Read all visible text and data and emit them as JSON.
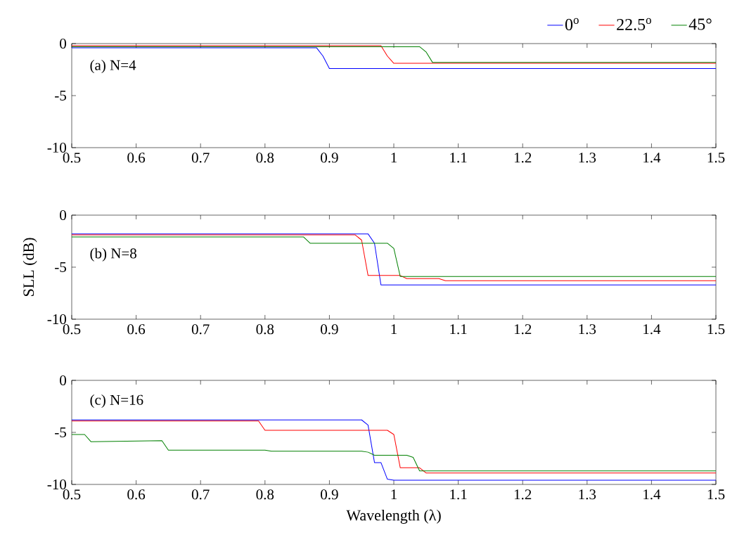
{
  "chart_data": [
    {
      "type": "line",
      "xlim": [
        0.5,
        1.5
      ],
      "ylim": [
        -10,
        0
      ],
      "xticks": [
        0.5,
        0.6,
        0.7,
        0.8,
        0.9,
        1,
        1.1,
        1.2,
        1.3,
        1.4,
        1.5
      ],
      "yticks": [
        -10,
        -5,
        0
      ],
      "legend": "top right",
      "marker": "none",
      "line_style": "solid",
      "annotations": [
        "(a) N=4"
      ],
      "series": [
        {
          "name": "0$^{o}$",
          "color": "#0000ff",
          "x": [
            0.5,
            0.88,
            0.89,
            0.9,
            1.5
          ],
          "values": [
            -0.4,
            -0.4,
            -1.2,
            -2.4,
            -2.4
          ]
        },
        {
          "name": "22.5$^{o}$",
          "color": "#ff0000",
          "x": [
            0.5,
            0.98,
            0.99,
            1.0,
            1.5
          ],
          "values": [
            -0.2,
            -0.2,
            -1.2,
            -1.9,
            -1.9
          ]
        },
        {
          "name": "45°",
          "color": "#008000",
          "x": [
            0.5,
            1.04,
            1.05,
            1.06,
            1.5
          ],
          "values": [
            -0.3,
            -0.3,
            -0.8,
            -1.8,
            -1.8
          ]
        }
      ]
    },
    {
      "type": "line",
      "xlim": [
        0.5,
        1.5
      ],
      "ylim": [
        -10,
        0
      ],
      "xticks": [
        0.5,
        0.6,
        0.7,
        0.8,
        0.9,
        1,
        1.1,
        1.2,
        1.3,
        1.4,
        1.5
      ],
      "yticks": [
        -10,
        -5,
        0
      ],
      "ylabel": "SLL (dB)",
      "legend": false,
      "marker": "none",
      "line_style": "solid",
      "annotations": [
        "(b) N=8"
      ],
      "series": [
        {
          "color": "#0000ff",
          "x": [
            0.5,
            0.96,
            0.97,
            0.98,
            1.5
          ],
          "values": [
            -1.8,
            -1.8,
            -2.7,
            -6.7,
            -6.7
          ]
        },
        {
          "color": "#ff0000",
          "x": [
            0.5,
            0.94,
            0.95,
            0.96,
            1.01,
            1.02,
            1.07,
            1.08,
            1.5
          ],
          "values": [
            -1.9,
            -1.9,
            -2.4,
            -5.8,
            -5.8,
            -6.1,
            -6.1,
            -6.3,
            -6.3
          ]
        },
        {
          "color": "#008000",
          "x": [
            0.5,
            0.86,
            0.87,
            0.99,
            1.0,
            1.01,
            1.5
          ],
          "values": [
            -2.1,
            -2.1,
            -2.7,
            -2.7,
            -3.2,
            -5.9,
            -5.9
          ]
        }
      ]
    },
    {
      "type": "line",
      "xlim": [
        0.5,
        1.5
      ],
      "ylim": [
        -10,
        0
      ],
      "xticks": [
        0.5,
        0.6,
        0.7,
        0.8,
        0.9,
        1,
        1.1,
        1.2,
        1.3,
        1.4,
        1.5
      ],
      "yticks": [
        -10,
        -5,
        0
      ],
      "xlabel": "Wavelength (λ)",
      "legend": false,
      "marker": "none",
      "line_style": "solid",
      "annotations": [
        "(c) N=16"
      ],
      "series": [
        {
          "color": "#0000ff",
          "x": [
            0.5,
            0.95,
            0.96,
            0.97,
            0.98,
            0.99,
            1.0,
            1.5
          ],
          "values": [
            -3.8,
            -3.8,
            -4.3,
            -7.9,
            -7.9,
            -9.5,
            -9.6,
            -9.6
          ]
        },
        {
          "color": "#ff0000",
          "x": [
            0.5,
            0.79,
            0.8,
            0.99,
            1.0,
            1.01,
            1.04,
            1.05,
            1.5
          ],
          "values": [
            -3.9,
            -3.9,
            -4.8,
            -4.8,
            -5.2,
            -8.4,
            -8.4,
            -8.9,
            -8.9
          ]
        },
        {
          "color": "#008000",
          "x": [
            0.5,
            0.52,
            0.53,
            0.64,
            0.65,
            0.8,
            0.81,
            0.95,
            0.96,
            0.97,
            1.02,
            1.03,
            1.04,
            1.5
          ],
          "values": [
            -5.2,
            -5.2,
            -5.9,
            -5.8,
            -6.7,
            -6.7,
            -6.8,
            -6.8,
            -6.9,
            -7.2,
            -7.2,
            -7.4,
            -8.7,
            -8.7
          ]
        }
      ]
    }
  ]
}
